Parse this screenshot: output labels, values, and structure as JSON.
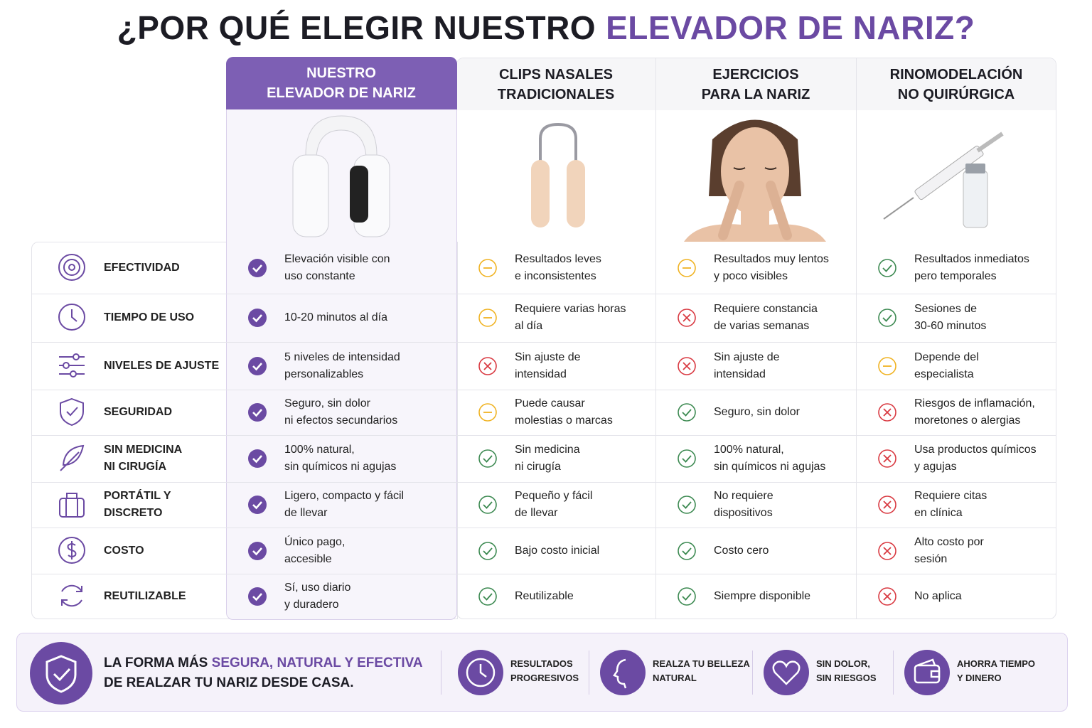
{
  "title": {
    "main": "¿POR QUÉ ELEGIR NUESTRO",
    "highlight": "ELEVADOR DE NARIZ?"
  },
  "table": {
    "columns": [
      {
        "lines": [
          "NUESTRO",
          "ELEVADOR DE NARIZ"
        ]
      },
      {
        "lines": [
          "CLIPS NASALES",
          "TRADICIONALES"
        ]
      },
      {
        "lines": [
          "EJERCICIOS",
          "PARA LA NARIZ"
        ]
      },
      {
        "lines": [
          "RINOMODELACIÓN",
          "NO QUIRÚRGICA"
        ]
      }
    ],
    "rows": [
      {
        "label": [
          "EFECTIVIDAD"
        ],
        "cells": [
          {
            "status": "check",
            "lines": [
              "Elevación visible con",
              "uso constante"
            ]
          },
          {
            "status": "partial",
            "lines": [
              "Resultados leves",
              "e inconsistentes"
            ]
          },
          {
            "status": "partial",
            "lines": [
              "Resultados muy lentos",
              "y poco visibles"
            ]
          },
          {
            "status": "check",
            "lines": [
              "Resultados inmediatos",
              "pero temporales"
            ]
          }
        ]
      },
      {
        "label": [
          "TIEMPO DE USO"
        ],
        "cells": [
          {
            "status": "check",
            "lines": [
              "10-20 minutos al día"
            ]
          },
          {
            "status": "partial",
            "lines": [
              "Requiere varias horas",
              "al día"
            ]
          },
          {
            "status": "cross",
            "lines": [
              "Requiere constancia",
              "de varias semanas"
            ]
          },
          {
            "status": "check",
            "lines": [
              "Sesiones de",
              "30-60 minutos"
            ]
          }
        ]
      },
      {
        "label": [
          "NIVELES DE AJUSTE"
        ],
        "cells": [
          {
            "status": "check",
            "lines": [
              "5 niveles de intensidad",
              "personalizables"
            ]
          },
          {
            "status": "cross",
            "lines": [
              "Sin ajuste de",
              "intensidad"
            ]
          },
          {
            "status": "cross",
            "lines": [
              "Sin ajuste de",
              "intensidad"
            ]
          },
          {
            "status": "partial",
            "lines": [
              "Depende del",
              "especialista"
            ]
          }
        ]
      },
      {
        "label": [
          "SEGURIDAD"
        ],
        "cells": [
          {
            "status": "check",
            "lines": [
              "Seguro, sin dolor",
              "ni efectos secundarios"
            ]
          },
          {
            "status": "partial",
            "lines": [
              "Puede causar",
              "molestias o marcas"
            ]
          },
          {
            "status": "check",
            "lines": [
              "Seguro, sin dolor"
            ]
          },
          {
            "status": "cross",
            "lines": [
              "Riesgos de inflamación,",
              "moretones o alergias"
            ]
          }
        ]
      },
      {
        "label": [
          "SIN MEDICINA",
          "NI CIRUGÍA"
        ],
        "cells": [
          {
            "status": "check",
            "lines": [
              "100% natural,",
              "sin químicos ni agujas"
            ]
          },
          {
            "status": "check",
            "lines": [
              "Sin medicina",
              "ni cirugía"
            ]
          },
          {
            "status": "check",
            "lines": [
              "100% natural,",
              "sin químicos ni agujas"
            ]
          },
          {
            "status": "cross",
            "lines": [
              "Usa productos químicos",
              "y agujas"
            ]
          }
        ]
      },
      {
        "label": [
          "PORTÁTIL Y",
          "DISCRETO"
        ],
        "cells": [
          {
            "status": "check",
            "lines": [
              "Ligero, compacto y fácil",
              "de llevar"
            ]
          },
          {
            "status": "check",
            "lines": [
              "Pequeño y fácil",
              "de llevar"
            ]
          },
          {
            "status": "check",
            "lines": [
              "No requiere",
              "dispositivos"
            ]
          },
          {
            "status": "cross",
            "lines": [
              "Requiere citas",
              "en clínica"
            ]
          }
        ]
      },
      {
        "label": [
          "COSTO"
        ],
        "cells": [
          {
            "status": "check",
            "lines": [
              "Único pago,",
              "accesible"
            ]
          },
          {
            "status": "check",
            "lines": [
              "Bajo costo inicial"
            ]
          },
          {
            "status": "check",
            "lines": [
              "Costo cero"
            ]
          },
          {
            "status": "cross",
            "lines": [
              "Alto costo por",
              "sesión"
            ]
          }
        ]
      },
      {
        "label": [
          "REUTILIZABLE"
        ],
        "cells": [
          {
            "status": "check",
            "lines": [
              "Sí, uso diario",
              "y duradero"
            ]
          },
          {
            "status": "check",
            "lines": [
              "Reutilizable"
            ]
          },
          {
            "status": "check",
            "lines": [
              "Siempre disponible"
            ]
          },
          {
            "status": "cross",
            "lines": [
              "No aplica"
            ]
          }
        ]
      }
    ]
  },
  "footer": {
    "statement": {
      "start": "LA FORMA MÁS",
      "highlight": "SEGURA, NATURAL Y EFECTIVA",
      "end": "DE REALZAR TU NARIZ DESDE CASA."
    },
    "benefits": [
      {
        "lines": [
          "RESULTADOS",
          "PROGRESIVOS"
        ]
      },
      {
        "lines": [
          "REALZA TU BELLEZA",
          "NATURAL"
        ]
      },
      {
        "lines": [
          "SIN DOLOR,",
          "SIN RIESGOS"
        ]
      },
      {
        "lines": [
          "AHORRA TIEMPO",
          "Y DINERO"
        ]
      }
    ]
  }
}
